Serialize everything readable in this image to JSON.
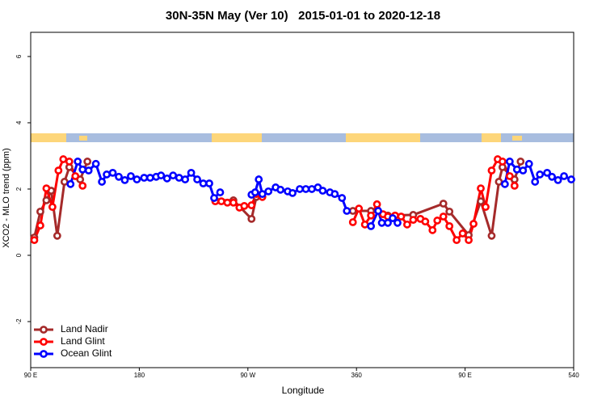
{
  "chart_data": {
    "type": "line",
    "title": "30N-35N May (Ver 10)   2015-01-01 to 2020-12-18",
    "xlabel": "Longitude",
    "ylabel": "XCO2 - MLO trend (ppm)",
    "xlim": [
      90,
      540
    ],
    "xticks": [
      {
        "value": 90,
        "label": "90 E"
      },
      180,
      {
        "value": 270,
        "label": "90 W"
      },
      360,
      {
        "value": 450,
        "label": "90 E"
      },
      540
    ],
    "ylim": [
      -3.39,
      6.73
    ],
    "yticks": [
      -2,
      0,
      2,
      4,
      6
    ],
    "legend": "lower left",
    "series": [
      {
        "name": "Land Nadir",
        "color": "#a52a2a",
        "x": [
          93,
          98,
          103,
          107,
          112,
          118,
          122,
          131,
          137,
          null,
          243,
          258,
          273,
          277,
          null,
          357,
          372,
          386,
          407,
          432,
          437,
          453,
          463,
          472,
          478,
          481,
          491,
          496
        ],
        "values": [
          0.54,
          1.32,
          1.66,
          1.95,
          0.59,
          2.22,
          2.66,
          2.29,
          2.83,
          null,
          1.66,
          1.66,
          1.1,
          1.76,
          null,
          1.34,
          1.34,
          1.2,
          1.22,
          1.56,
          1.32,
          0.61,
          1.63,
          0.59,
          2.22,
          2.66,
          2.29,
          2.83
        ]
      },
      {
        "name": "Land Glint",
        "color": "#ff0000",
        "x": [
          93,
          98,
          103,
          108,
          113,
          117,
          122,
          127,
          133,
          null,
          243,
          248,
          253,
          258,
          263,
          267,
          273,
          277,
          282,
          null,
          357,
          362,
          367,
          372,
          377,
          382,
          386,
          392,
          397,
          402,
          407,
          413,
          417,
          423,
          427,
          432,
          437,
          443,
          448,
          453,
          457,
          463,
          467,
          472,
          477,
          481,
          487,
          491
        ],
        "values": [
          0.46,
          0.9,
          2.02,
          1.46,
          2.56,
          2.9,
          2.83,
          2.39,
          2.1,
          null,
          1.63,
          1.63,
          1.59,
          1.59,
          1.44,
          1.49,
          1.51,
          1.85,
          1.76,
          null,
          1.0,
          1.41,
          0.93,
          1.2,
          1.54,
          1.24,
          1.17,
          1.2,
          1.17,
          0.93,
          1.07,
          1.1,
          1.02,
          0.76,
          1.05,
          1.17,
          0.88,
          0.46,
          0.66,
          0.46,
          0.95,
          2.02,
          1.46,
          2.56,
          2.9,
          2.83,
          2.39,
          2.1
        ]
      },
      {
        "name": "Ocean Glint",
        "color": "#0000ff",
        "x": [
          123,
          129,
          133,
          138,
          144,
          149,
          153,
          158,
          163,
          168,
          173,
          178,
          184,
          189,
          194,
          198,
          203,
          208,
          213,
          218,
          223,
          228,
          233,
          238,
          242,
          247,
          null,
          273,
          276,
          279,
          282,
          287,
          293,
          297,
          303,
          307,
          313,
          318,
          323,
          328,
          332,
          338,
          342,
          348,
          352,
          null,
          372,
          378,
          381,
          386,
          390,
          394,
          null,
          483,
          487,
          493,
          498,
          503,
          508,
          512,
          518,
          522,
          527,
          532,
          538
        ],
        "values": [
          2.15,
          2.83,
          2.59,
          2.56,
          2.76,
          2.22,
          2.44,
          2.49,
          2.37,
          2.27,
          2.39,
          2.29,
          2.34,
          2.34,
          2.37,
          2.41,
          2.32,
          2.41,
          2.34,
          2.29,
          2.49,
          2.29,
          2.17,
          2.17,
          1.73,
          1.9,
          null,
          1.83,
          1.9,
          2.29,
          1.85,
          1.93,
          2.05,
          1.98,
          1.93,
          1.88,
          2.0,
          2.0,
          2.0,
          2.05,
          1.95,
          1.9,
          1.85,
          1.73,
          1.34,
          null,
          0.88,
          1.34,
          0.98,
          0.98,
          1.12,
          0.98,
          null,
          2.15,
          2.83,
          2.59,
          2.56,
          2.76,
          2.22,
          2.44,
          2.49,
          2.37,
          2.27,
          2.39,
          2.29
        ]
      }
    ]
  }
}
